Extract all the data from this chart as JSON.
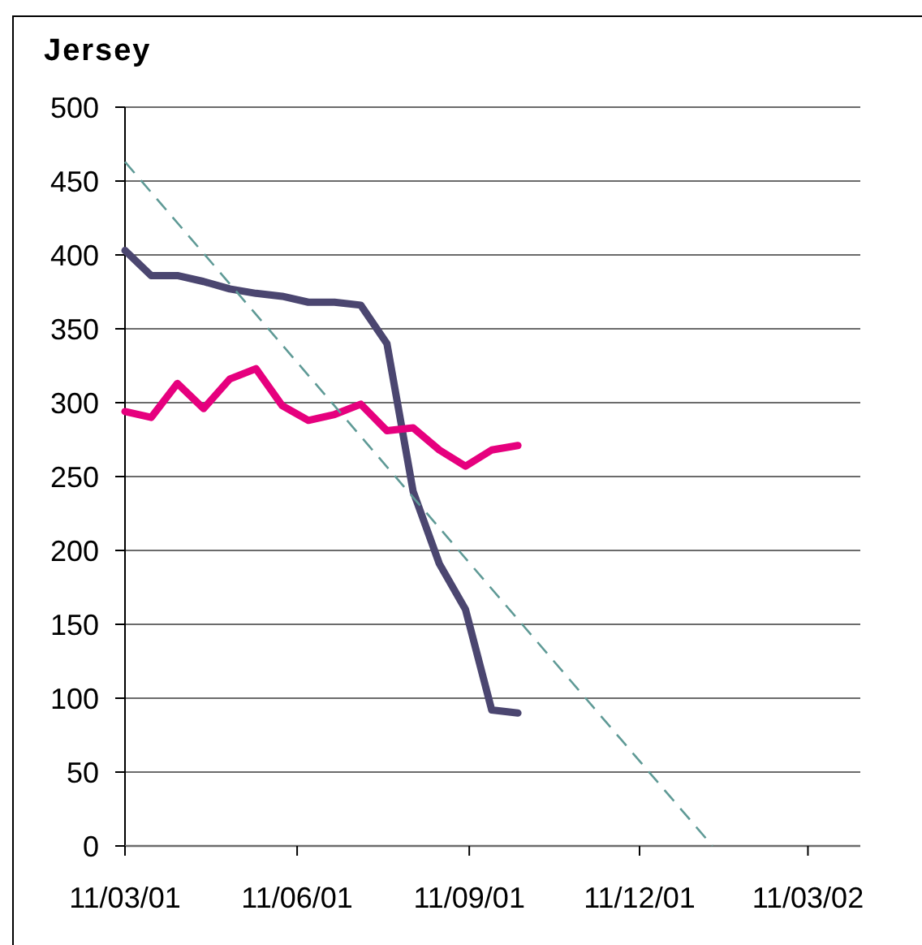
{
  "chart_data": {
    "type": "line",
    "title": "Jersey",
    "x": [
      "2001-03-11",
      "2001-03-25",
      "2001-04-08",
      "2001-04-22",
      "2001-05-06",
      "2001-05-20",
      "2001-06-03",
      "2001-06-17",
      "2001-07-01",
      "2001-07-15",
      "2001-07-29",
      "2001-08-12",
      "2001-08-26",
      "2001-09-09",
      "2001-09-23",
      "2001-10-07"
    ],
    "series": [
      {
        "color": "#4b4670",
        "values": [
          403,
          386,
          386,
          382,
          377,
          374,
          372,
          368,
          368,
          366,
          340,
          240,
          191,
          160,
          92,
          90
        ]
      },
      {
        "color": "#e6007e",
        "values": [
          294,
          290,
          313,
          296,
          316,
          323,
          298,
          288,
          292,
          299,
          281,
          283,
          268,
          257,
          268,
          271
        ]
      },
      {
        "color": "#5f9a96",
        "line_style": "dashed",
        "x": [
          "2001-03-11",
          "2002-01-19"
        ],
        "values": [
          463,
          0
        ]
      }
    ],
    "xlim": [
      "2001-03-11",
      "2002-04-08"
    ],
    "xticks": [
      {
        "value": "2001-03-11",
        "label": "11/03/01"
      },
      {
        "value": "2001-06-11",
        "label": "11/06/01"
      },
      {
        "value": "2001-09-11",
        "label": "11/09/01"
      },
      {
        "value": "2001-12-11",
        "label": "11/12/01"
      },
      {
        "value": "2002-03-11",
        "label": "11/03/02"
      }
    ],
    "ylim": [
      0,
      500
    ],
    "yticks": [
      0,
      50,
      100,
      150,
      200,
      250,
      300,
      350,
      400,
      450,
      500
    ],
    "grid": "y",
    "marker": "none",
    "line_style": "solid"
  }
}
